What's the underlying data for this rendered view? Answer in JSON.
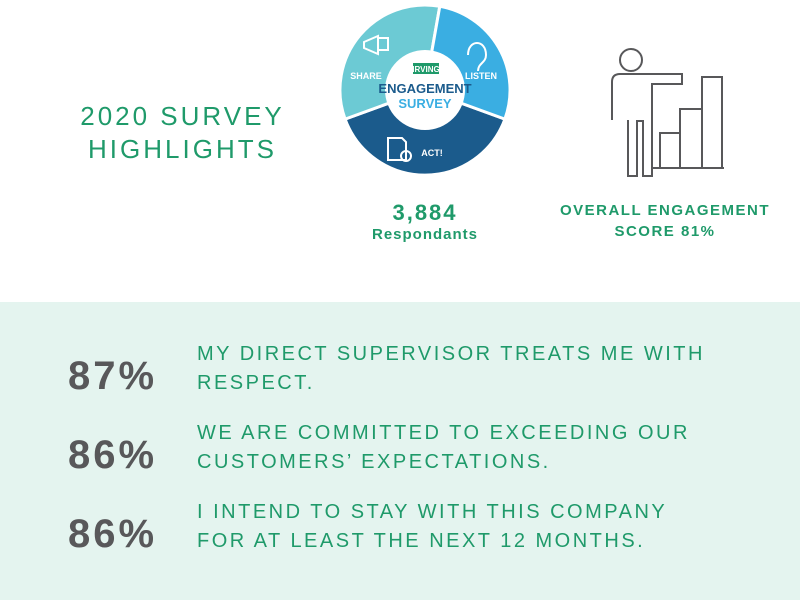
{
  "header": {
    "title_lines": [
      "2020 SURVEY",
      "HIGHLIGHTS"
    ]
  },
  "logo": {
    "share": "SHARE",
    "listen": "LISTEN",
    "act": "ACT!",
    "brand": "IRVING",
    "title_lines": [
      "ENGAGEMENT",
      "SURVEY"
    ]
  },
  "respondents": {
    "count": "3,884",
    "label": "Respondants"
  },
  "engagement": {
    "lines": [
      "OVERALL ENGAGEMENT",
      "SCORE 81%"
    ]
  },
  "highlights": [
    {
      "percent": "87%",
      "lines": [
        "MY DIRECT SUPERVISOR TREATS ME WITH",
        "RESPECT."
      ]
    },
    {
      "percent": "86%",
      "lines": [
        "WE ARE COMMITTED TO EXCEEDING OUR",
        "CUSTOMERS’ EXPECTATIONS."
      ]
    },
    {
      "percent": "86%",
      "lines": [
        "I INTEND TO STAY WITH THIS COMPANY",
        "FOR AT LEAST THE NEXT 12 MONTHS."
      ]
    }
  ]
}
